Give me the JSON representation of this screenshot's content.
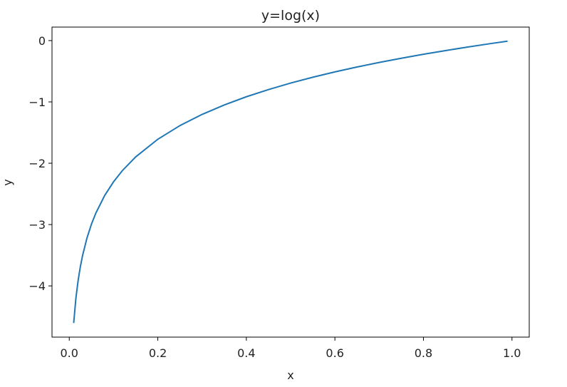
{
  "chart_data": {
    "type": "line",
    "title": "y=log(x)",
    "x_label": "x",
    "y_label": "y",
    "x": [
      0.01,
      0.015,
      0.02,
      0.025,
      0.03,
      0.04,
      0.05,
      0.06,
      0.08,
      0.1,
      0.12,
      0.15,
      0.2,
      0.25,
      0.3,
      0.35,
      0.4,
      0.45,
      0.5,
      0.55,
      0.6,
      0.65,
      0.7,
      0.75,
      0.8,
      0.85,
      0.9,
      0.95,
      0.99
    ],
    "series": [
      {
        "name": "log(x)",
        "color": "#1f77b4",
        "values": [
          -4.605,
          -4.2,
          -3.912,
          -3.689,
          -3.507,
          -3.219,
          -2.996,
          -2.813,
          -2.526,
          -2.303,
          -2.12,
          -1.897,
          -1.609,
          -1.386,
          -1.204,
          -1.05,
          -0.916,
          -0.799,
          -0.693,
          -0.598,
          -0.511,
          -0.431,
          -0.357,
          -0.288,
          -0.223,
          -0.163,
          -0.105,
          -0.051,
          -0.01
        ]
      }
    ],
    "xlim": [
      -0.039,
      1.039
    ],
    "ylim": [
      -4.835,
      0.22
    ],
    "xticks": [
      {
        "value": 0,
        "label": "0.0"
      },
      0.2,
      0.4,
      0.6,
      0.8,
      {
        "value": 1,
        "label": "1.0"
      }
    ],
    "yticks": [
      {
        "value": 0,
        "label": "0"
      },
      {
        "value": -1,
        "label": "−1"
      },
      {
        "value": -2,
        "label": "−2"
      },
      {
        "value": -3,
        "label": "−3"
      },
      {
        "value": -4,
        "label": "−4"
      }
    ],
    "grid": false
  }
}
